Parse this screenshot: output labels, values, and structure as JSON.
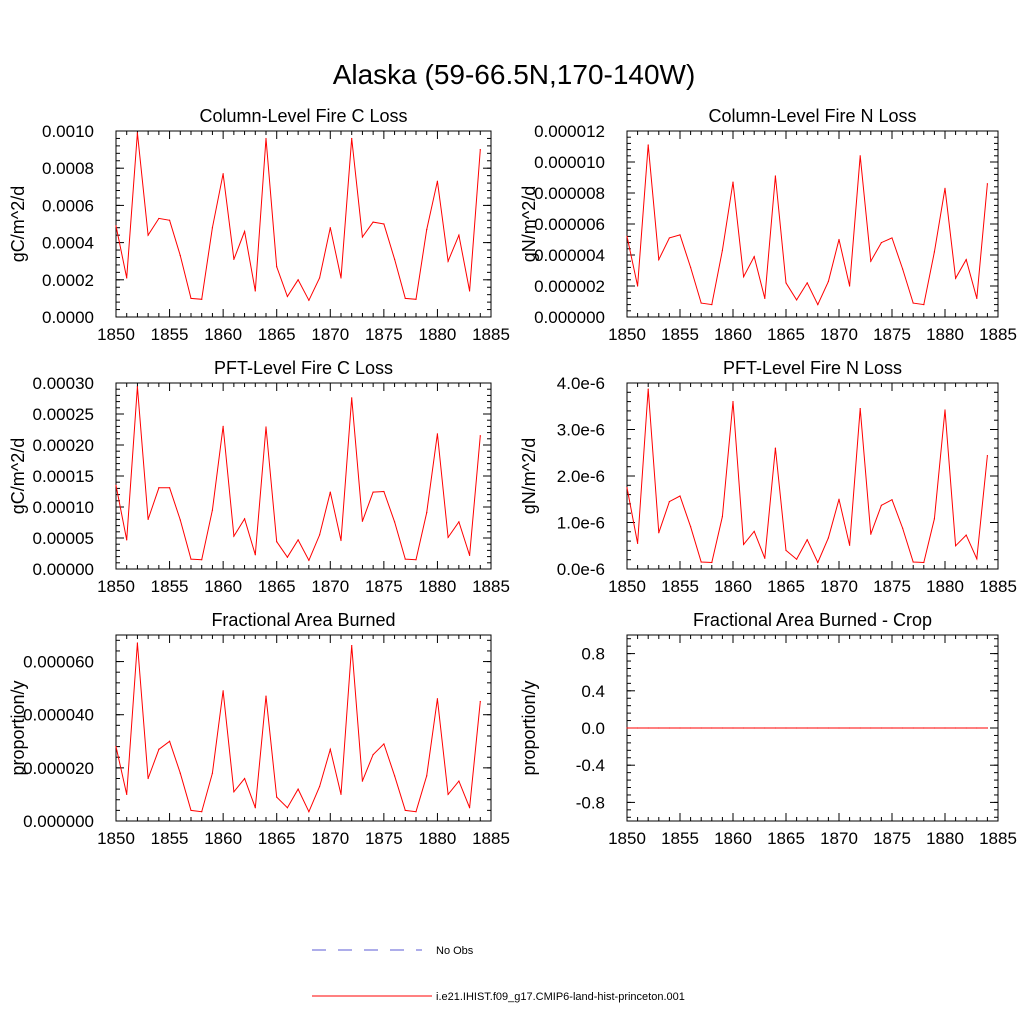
{
  "figure_title": "Alaska (59-66.5N,170-140W)",
  "legend": {
    "entries": [
      {
        "label": "No Obs",
        "color": "#5b5bd6",
        "style": "dashed"
      },
      {
        "label": "i.e21.IHIST.f09_g17.CMIP6-land-hist-princeton.001",
        "color": "#ff0000",
        "style": "solid"
      }
    ]
  },
  "chart_data": [
    {
      "type": "line",
      "title": "Column-Level Fire C Loss",
      "ylabel": "gC/m^2/d",
      "xlim": [
        1850,
        1885
      ],
      "ylim": [
        0,
        0.001
      ],
      "yticks": [
        0,
        0.0002,
        0.0004,
        0.0006,
        0.0008,
        0.001
      ],
      "ytick_labels": [
        "0.0000",
        "0.0002",
        "0.0004",
        "0.0006",
        "0.0008",
        "0.0010"
      ],
      "xticks": [
        1850,
        1855,
        1860,
        1865,
        1870,
        1875,
        1880,
        1885
      ],
      "series": [
        {
          "color": "#ff0000",
          "x_start": 1850,
          "values": [
            0.00049,
            0.00021,
            0.00099,
            0.00044,
            0.00053,
            0.00052,
            0.00033,
            0.0001,
            9.5e-05,
            0.00048,
            0.00077,
            0.00031,
            0.00046,
            0.00014,
            0.00096,
            0.00027,
            0.00011,
            0.0002,
            9e-05,
            0.00021,
            0.00048,
            0.00021,
            0.00096,
            0.00043,
            0.00051,
            0.0005,
            0.00031,
            0.0001,
            9.5e-05,
            0.00047,
            0.00073,
            0.0003,
            0.00044,
            0.00014,
            0.0009
          ]
        }
      ]
    },
    {
      "type": "line",
      "title": "Column-Level Fire N Loss",
      "ylabel": "gN/m^2/d",
      "xlim": [
        1850,
        1885
      ],
      "ylim": [
        0,
        1.2e-05
      ],
      "yticks": [
        0,
        2e-06,
        4e-06,
        6e-06,
        8e-06,
        1e-05,
        1.2e-05
      ],
      "ytick_labels": [
        "0.000000",
        "0.000002",
        "0.000004",
        "0.000006",
        "0.000008",
        "0.000010",
        "0.000012"
      ],
      "xticks": [
        1850,
        1855,
        1860,
        1865,
        1870,
        1875,
        1880,
        1885
      ],
      "series": [
        {
          "color": "#ff0000",
          "x_start": 1850,
          "values": [
            5.2e-06,
            2e-06,
            1.11e-05,
            3.7e-06,
            5.1e-06,
            5.3e-06,
            3.2e-06,
            9e-07,
            8e-07,
            4.3e-06,
            8.7e-06,
            2.6e-06,
            3.9e-06,
            1.2e-06,
            9.1e-06,
            2.2e-06,
            1.1e-06,
            2.2e-06,
            8e-07,
            2.3e-06,
            5e-06,
            2e-06,
            1.04e-05,
            3.6e-06,
            4.8e-06,
            5.1e-06,
            3.1e-06,
            9e-07,
            8e-07,
            4.2e-06,
            8.3e-06,
            2.5e-06,
            3.7e-06,
            1.2e-06,
            8.6e-06
          ]
        }
      ]
    },
    {
      "type": "line",
      "title": "PFT-Level Fire C Loss",
      "ylabel": "gC/m^2/d",
      "xlim": [
        1850,
        1885
      ],
      "ylim": [
        0,
        0.0003
      ],
      "yticks": [
        0,
        5e-05,
        0.0001,
        0.00015,
        0.0002,
        0.00025,
        0.0003
      ],
      "ytick_labels": [
        "0.00000",
        "0.00005",
        "0.00010",
        "0.00015",
        "0.00020",
        "0.00025",
        "0.00030"
      ],
      "xticks": [
        1850,
        1855,
        1860,
        1865,
        1870,
        1875,
        1880,
        1885
      ],
      "series": [
        {
          "color": "#ff0000",
          "x_start": 1850,
          "values": [
            0.000135,
            4.7e-05,
            0.000294,
            8e-05,
            0.000131,
            0.000131,
            7.9e-05,
            1.6e-05,
            1.5e-05,
            9.5e-05,
            0.00023,
            5.3e-05,
            8.1e-05,
            2.3e-05,
            0.000229,
            4.4e-05,
            1.9e-05,
            4.7e-05,
            1.4e-05,
            5.5e-05,
            0.000124,
            4.6e-05,
            0.000276,
            7.7e-05,
            0.000124,
            0.000125,
            7.6e-05,
            1.6e-05,
            1.5e-05,
            9.1e-05,
            0.000218,
            5.1e-05,
            7.6e-05,
            2.2e-05,
            0.000215
          ]
        }
      ]
    },
    {
      "type": "line",
      "title": "PFT-Level Fire N Loss",
      "ylabel": "gN/m^2/d",
      "xlim": [
        1850,
        1885
      ],
      "ylim": [
        0,
        4e-06
      ],
      "yticks": [
        0,
        1e-06,
        2e-06,
        3e-06,
        4e-06
      ],
      "ytick_labels": [
        "0.0e-6",
        "1.0e-6",
        "2.0e-6",
        "3.0e-6",
        "4.0e-6"
      ],
      "xticks": [
        1850,
        1855,
        1860,
        1865,
        1870,
        1875,
        1880,
        1885
      ],
      "series": [
        {
          "color": "#ff0000",
          "x_start": 1850,
          "values": [
            1.75e-06,
            5.5e-07,
            3.87e-06,
            7.8e-07,
            1.45e-06,
            1.57e-06,
            9.1e-07,
            1.5e-07,
            1.4e-07,
            1.13e-06,
            3.6e-06,
            5.3e-07,
            8.1e-07,
            2.3e-07,
            2.6e-06,
            4e-07,
            2.1e-07,
            6.3e-07,
            1.4e-07,
            6.7e-07,
            1.5e-06,
            5.1e-07,
            3.45e-06,
            7.5e-07,
            1.37e-06,
            1.49e-06,
            8.8e-07,
            1.5e-07,
            1.4e-07,
            1.08e-06,
            3.42e-06,
            5e-07,
            7.3e-07,
            2.2e-07,
            2.44e-06
          ]
        }
      ]
    },
    {
      "type": "line",
      "title": "Fractional Area Burned",
      "ylabel": "proportion/y",
      "xlim": [
        1850,
        1885
      ],
      "ylim": [
        0,
        7e-05
      ],
      "yticks": [
        0,
        2e-05,
        4e-05,
        6e-05
      ],
      "ytick_labels": [
        "0.000000",
        "0.000020",
        "0.000040",
        "0.000060"
      ],
      "xticks": [
        1850,
        1855,
        1860,
        1865,
        1870,
        1875,
        1880,
        1885
      ],
      "series": [
        {
          "color": "#ff0000",
          "x_start": 1850,
          "values": [
            2.8e-05,
            1e-05,
            6.7e-05,
            1.6e-05,
            2.7e-05,
            3e-05,
            1.8e-05,
            4e-06,
            3.5e-06,
            1.8e-05,
            4.9e-05,
            1.1e-05,
            1.6e-05,
            5e-06,
            4.7e-05,
            9e-06,
            5e-06,
            1.2e-05,
            3.5e-06,
            1.3e-05,
            2.7e-05,
            1e-05,
            6.6e-05,
            1.5e-05,
            2.5e-05,
            2.9e-05,
            1.7e-05,
            4e-06,
            3.5e-06,
            1.7e-05,
            4.6e-05,
            1e-05,
            1.5e-05,
            5e-06,
            4.5e-05
          ]
        }
      ]
    },
    {
      "type": "line",
      "title": "Fractional Area Burned - Crop",
      "ylabel": "proportion/y",
      "xlim": [
        1850,
        1885
      ],
      "ylim": [
        -1,
        1
      ],
      "yticks": [
        -0.8,
        -0.4,
        0,
        0.4,
        0.8
      ],
      "ytick_labels": [
        "-0.8",
        "-0.4",
        "0.0",
        "0.4",
        "0.8"
      ],
      "xticks": [
        1850,
        1855,
        1860,
        1865,
        1870,
        1875,
        1880,
        1885
      ],
      "series": [
        {
          "color": "#ff0000",
          "x_start": 1850,
          "values": [
            0,
            0,
            0,
            0,
            0,
            0,
            0,
            0,
            0,
            0,
            0,
            0,
            0,
            0,
            0,
            0,
            0,
            0,
            0,
            0,
            0,
            0,
            0,
            0,
            0,
            0,
            0,
            0,
            0,
            0,
            0,
            0,
            0,
            0,
            0
          ]
        }
      ]
    }
  ]
}
